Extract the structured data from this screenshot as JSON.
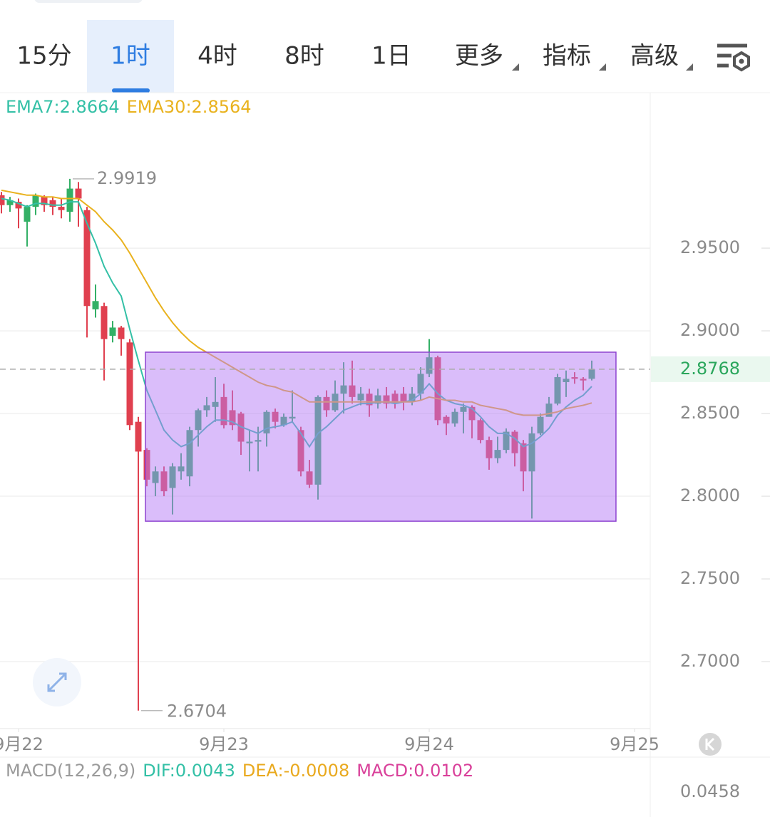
{
  "tabs": [
    "15分",
    "1时",
    "4时",
    "8时",
    "1日",
    "更多",
    "指标",
    "高级"
  ],
  "selected_tab": 1,
  "chart_data": {
    "type": "candlestick",
    "up_color": "#33b066",
    "down_color": "#e0404f",
    "xlim": [
      -0.1667,
      75.8333
    ],
    "xticks": [
      {
        "value": 2,
        "label": "9月22"
      },
      {
        "value": 26,
        "label": "9月23"
      },
      {
        "value": 50,
        "label": "9月24"
      },
      {
        "value": 74,
        "label": "9月25"
      }
    ],
    "ylim": [
      2.6595,
      3.044
    ],
    "yticks": [
      {
        "value": 2.95,
        "label": "2.9500"
      },
      {
        "value": 2.9,
        "label": "2.9000"
      },
      {
        "value": 2.85,
        "label": "2.8500"
      },
      {
        "value": 2.8,
        "label": "2.8000"
      },
      {
        "value": 2.75,
        "label": "2.7500"
      },
      {
        "value": 2.7,
        "label": "2.7000"
      }
    ],
    "grid": true,
    "open": [
      2.982,
      2.976,
      2.978,
      2.966,
      2.975,
      2.981,
      2.979,
      2.975,
      2.972,
      2.986,
      2.973,
      2.913,
      2.915,
      2.897,
      2.902,
      2.893,
      2.845,
      2.828,
      2.808,
      2.815,
      2.805,
      2.815,
      2.812,
      2.84,
      2.852,
      2.854,
      2.86,
      2.852,
      2.85,
      2.832,
      2.833,
      2.838,
      2.851,
      2.843,
      2.847,
      2.84,
      2.815,
      2.807,
      2.86,
      2.852,
      2.862,
      2.867,
      2.858,
      2.862,
      2.856,
      2.861,
      2.862,
      2.862,
      2.857,
      2.862,
      2.874,
      2.884,
      2.848,
      2.844,
      2.851,
      2.854,
      2.846,
      2.834,
      2.823,
      2.828,
      2.839,
      2.832,
      2.815,
      2.838,
      2.848,
      2.856,
      2.869,
      2.872,
      2.871,
      2.871
    ],
    "high": [
      2.984,
      2.981,
      2.98,
      2.976,
      2.983,
      2.982,
      2.981,
      2.98,
      2.9919,
      2.99,
      2.975,
      2.928,
      2.917,
      2.906,
      2.903,
      2.895,
      2.848,
      2.829,
      2.818,
      2.818,
      2.82,
      2.826,
      2.842,
      2.853,
      2.86,
      2.872,
      2.868,
      2.864,
      2.851,
      2.84,
      2.842,
      2.852,
      2.853,
      2.85,
      2.864,
      2.842,
      2.822,
      2.861,
      2.864,
      2.87,
      2.881,
      2.882,
      2.866,
      2.865,
      2.865,
      2.866,
      2.864,
      2.866,
      2.866,
      2.878,
      2.895,
      2.885,
      2.849,
      2.853,
      2.856,
      2.855,
      2.847,
      2.836,
      2.836,
      2.841,
      2.84,
      2.834,
      2.842,
      2.85,
      2.86,
      2.874,
      2.876,
      2.875,
      2.872,
      2.882
    ],
    "low": [
      2.971,
      2.972,
      2.962,
      2.951,
      2.97,
      2.972,
      2.97,
      2.968,
      2.966,
      2.963,
      2.896,
      2.908,
      2.87,
      2.893,
      2.885,
      2.84,
      2.6704,
      2.806,
      2.8,
      2.8,
      2.789,
      2.81,
      2.806,
      2.83,
      2.848,
      2.845,
      2.841,
      2.84,
      2.825,
      2.815,
      2.815,
      2.83,
      2.841,
      2.842,
      2.845,
      2.812,
      2.805,
      2.798,
      2.848,
      2.851,
      2.85,
      2.856,
      2.855,
      2.848,
      2.853,
      2.853,
      2.853,
      2.852,
      2.855,
      2.858,
      2.872,
      2.843,
      2.837,
      2.842,
      2.838,
      2.835,
      2.832,
      2.816,
      2.82,
      2.826,
      2.818,
      2.803,
      2.7865,
      2.837,
      2.85,
      2.855,
      2.86,
      2.868,
      2.864,
      2.87
    ],
    "close": [
      2.976,
      2.979,
      2.974,
      2.975,
      2.982,
      2.976,
      2.975,
      2.973,
      2.986,
      2.98,
      2.915,
      2.918,
      2.895,
      2.902,
      2.895,
      2.843,
      2.827,
      2.81,
      2.815,
      2.803,
      2.818,
      2.818,
      2.84,
      2.852,
      2.855,
      2.857,
      2.843,
      2.843,
      2.833,
      2.833,
      2.834,
      2.851,
      2.845,
      2.848,
      2.848,
      2.815,
      2.807,
      2.86,
      2.852,
      2.862,
      2.867,
      2.86,
      2.862,
      2.855,
      2.861,
      2.856,
      2.856,
      2.857,
      2.862,
      2.874,
      2.884,
      2.846,
      2.844,
      2.851,
      2.854,
      2.846,
      2.834,
      2.823,
      2.828,
      2.839,
      2.826,
      2.815,
      2.838,
      2.848,
      2.856,
      2.872,
      2.871,
      2.871,
      2.87,
      2.8768
    ],
    "series": [
      {
        "name": "EMA7:2.8664",
        "color": "#33c0a6",
        "values": [
          2.98,
          2.979,
          2.977,
          2.975,
          2.977,
          2.977,
          2.976,
          2.976,
          2.978,
          2.978,
          2.965,
          2.953,
          2.939,
          2.929,
          2.921,
          2.901,
          2.882,
          2.864,
          2.852,
          2.84,
          2.834,
          2.83,
          2.832,
          2.837,
          2.842,
          2.846,
          2.846,
          2.845,
          2.842,
          2.84,
          2.838,
          2.841,
          2.842,
          2.843,
          2.845,
          2.838,
          2.83,
          2.838,
          2.842,
          2.847,
          2.852,
          2.854,
          2.856,
          2.856,
          2.857,
          2.857,
          2.856,
          2.857,
          2.858,
          2.862,
          2.868,
          2.862,
          2.858,
          2.856,
          2.855,
          2.853,
          2.848,
          2.842,
          2.838,
          2.838,
          2.835,
          2.83,
          2.832,
          2.836,
          2.841,
          2.849,
          2.854,
          2.858,
          2.861,
          2.8664
        ]
      },
      {
        "name": "EMA30:2.8564",
        "color": "#e9b21e",
        "values": [
          2.985,
          2.984,
          2.983,
          2.982,
          2.982,
          2.981,
          2.981,
          2.98,
          2.98,
          2.98,
          2.976,
          2.972,
          2.966,
          2.961,
          2.955,
          2.947,
          2.938,
          2.929,
          2.92,
          2.912,
          2.905,
          2.899,
          2.894,
          2.89,
          2.887,
          2.884,
          2.881,
          2.878,
          2.875,
          2.872,
          2.869,
          2.867,
          2.866,
          2.864,
          2.863,
          2.86,
          2.857,
          2.857,
          2.857,
          2.857,
          2.857,
          2.857,
          2.857,
          2.857,
          2.857,
          2.857,
          2.857,
          2.857,
          2.857,
          2.858,
          2.86,
          2.859,
          2.858,
          2.858,
          2.857,
          2.857,
          2.855,
          2.854,
          2.853,
          2.852,
          2.85,
          2.849,
          2.849,
          2.849,
          2.85,
          2.851,
          2.853,
          2.854,
          2.855,
          2.8564
        ]
      }
    ],
    "annotation_box": {
      "x0": 16.83,
      "x1": 71.83,
      "y0": 2.8871,
      "y1": 2.7849,
      "color": "#b57cf5"
    },
    "macd": {
      "title": "MACD(12,26,9)",
      "dif": "DIF:0.0043",
      "dea": "DEA:-0.0008",
      "macd": "MACD:0.0102",
      "yticks": [
        0.0458
      ]
    }
  }
}
